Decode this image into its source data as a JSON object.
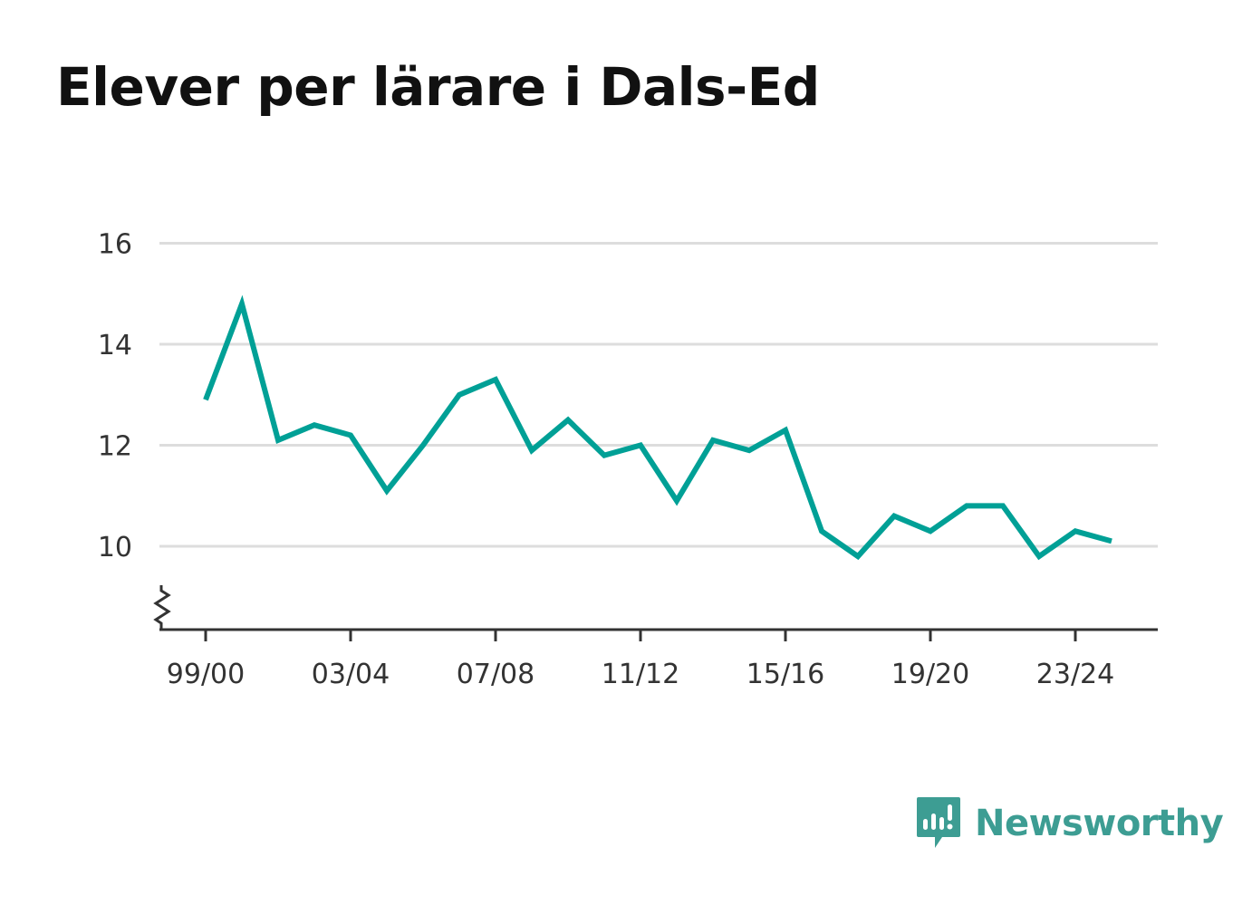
{
  "chart_data": {
    "type": "line",
    "title": "Elever per lärare i Dals-Ed",
    "xlabel": "",
    "ylabel": "",
    "x_tick_labels": [
      "99/00",
      "03/04",
      "07/08",
      "11/12",
      "15/16",
      "19/20",
      "23/24"
    ],
    "y_tick_labels": [
      "10",
      "12",
      "14",
      "16"
    ],
    "y_ticks": [
      10,
      12,
      14,
      16
    ],
    "ylim": [
      8.4,
      16
    ],
    "y_axis_break": true,
    "grid": "horizontal",
    "series": [
      {
        "color": "#00a096",
        "x": [
          "99/00",
          "00/01",
          "01/02",
          "02/03",
          "03/04",
          "04/05",
          "05/06",
          "06/07",
          "07/08",
          "08/09",
          "09/10",
          "10/11",
          "11/12",
          "12/13",
          "13/14",
          "14/15",
          "15/16",
          "16/17",
          "17/18",
          "18/19",
          "19/20",
          "20/21",
          "21/22",
          "22/23",
          "23/24",
          "24/25"
        ],
        "values": [
          12.9,
          14.8,
          12.1,
          12.4,
          12.2,
          11.1,
          12.0,
          13.0,
          13.3,
          11.9,
          12.5,
          11.8,
          12.0,
          10.9,
          12.1,
          11.9,
          12.3,
          10.3,
          9.8,
          10.6,
          10.3,
          10.8,
          10.8,
          9.8,
          10.3,
          10.1
        ]
      }
    ]
  },
  "brand": {
    "name": "Newsworthy",
    "icon": "newsworthy-logo-icon",
    "color": "#3d9d93"
  }
}
